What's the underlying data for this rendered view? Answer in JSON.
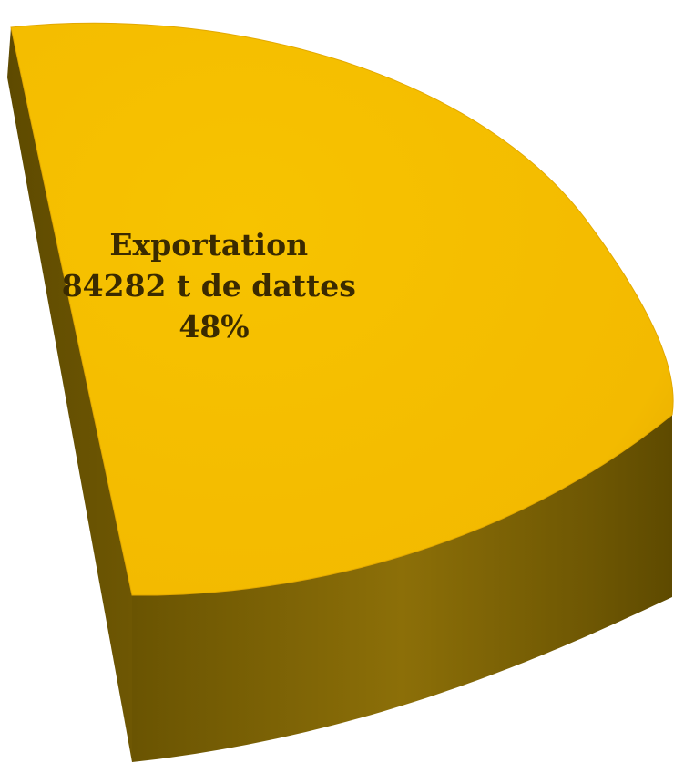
{
  "chart_data": {
    "type": "pie",
    "style": "3d",
    "slices": [
      {
        "name": "Exportation",
        "value": 84282,
        "unit": "t de dattes",
        "percent": 48,
        "label_lines": [
          "Exportation",
          "84282 t de dattes",
          "48%"
        ]
      }
    ],
    "colors": {
      "top": "#F5BE00",
      "top_edge": "#E2A800",
      "side_dark": "#5E4A00",
      "side_mid": "#8C6F08",
      "side_light": "#A8880F"
    },
    "legend": "none",
    "grid": false
  }
}
